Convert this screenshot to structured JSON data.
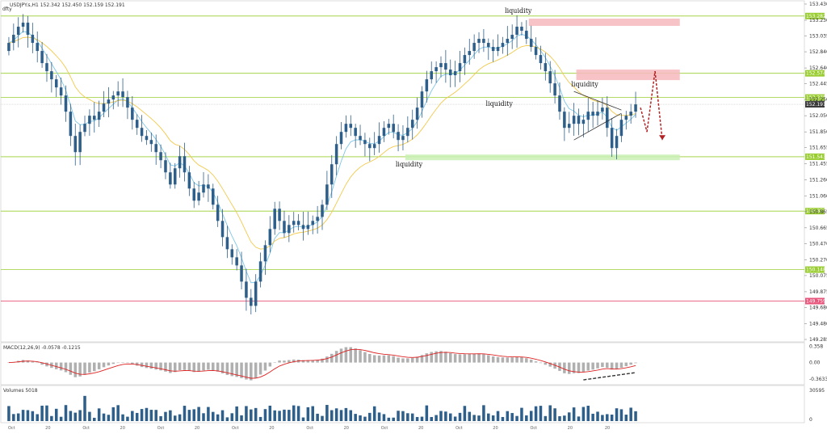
{
  "header": {
    "corner_label": "dfty",
    "instrument_line": "USDJPY.s,H1  152.342 152.450 152.159 152.191"
  },
  "colors": {
    "candle": "#2e5f8a",
    "ma_fast": "#7fc6e6",
    "ma_slow": "#f2c94c",
    "support_line": "#9acd32",
    "red_line": "#e8547a",
    "zone_red": "#f6b8bd",
    "zone_green": "#c9f0b4",
    "macd_hist": "#b0b0b0",
    "macd_signal": "#dd2222",
    "volume": "#2e5f8a",
    "current_price_tag": "#3a3a3a",
    "arrow": "#b22222"
  },
  "chart_data": [
    {
      "type": "candlestick",
      "title": "USDJPY.s,H1",
      "ylim": [
        149.285,
        153.43
      ],
      "yticks": [
        "153.430",
        "153.230",
        "153.035",
        "152.840",
        "152.640",
        "152.445",
        "152.250",
        "152.050",
        "151.850",
        "151.655",
        "151.455",
        "151.260",
        "151.060",
        "150.865",
        "150.665",
        "150.470",
        "150.270",
        "150.075",
        "149.875",
        "149.680",
        "149.480",
        "149.285"
      ],
      "levels": [
        {
          "label": "153.282",
          "value": 153.282,
          "color": "#9acd32"
        },
        {
          "label": "152.574",
          "value": 152.574,
          "color": "#9acd32"
        },
        {
          "label": "152.275",
          "value": 152.275,
          "color": "#9acd32"
        },
        {
          "label": "151.543",
          "value": 151.543,
          "color": "#9acd32"
        },
        {
          "label": "150.871",
          "value": 150.871,
          "color": "#9acd32"
        },
        {
          "label": "150.148",
          "value": 150.148,
          "color": "#9acd32"
        },
        {
          "label": "149.759",
          "value": 149.759,
          "color": "#e8547a"
        }
      ],
      "current_price": {
        "label": "152.191",
        "value": 152.191
      },
      "zones": [
        {
          "color": "red",
          "from_index": 110,
          "to_index": 134,
          "low": 153.16,
          "high": 153.25
        },
        {
          "color": "red",
          "from_index": 120,
          "to_index": 134,
          "low": 152.49,
          "high": 152.62
        },
        {
          "color": "green",
          "from_index": 84,
          "to_index": 134,
          "low": 151.5,
          "high": 151.57
        }
      ],
      "annotations": [
        {
          "text": "liquidity",
          "index": 107,
          "price": 153.32
        },
        {
          "text": "liquidity",
          "index": 103,
          "price": 152.17
        },
        {
          "text": "liquidity",
          "index": 84,
          "price": 151.42
        },
        {
          "text": "liquidity",
          "index": 121,
          "price": 152.41
        }
      ],
      "close": [
        152.95,
        153.05,
        153.15,
        153.2,
        153.05,
        152.95,
        152.85,
        152.7,
        152.6,
        152.5,
        152.4,
        152.3,
        152.1,
        151.8,
        151.6,
        151.85,
        151.95,
        152.05,
        152.0,
        152.1,
        152.2,
        152.25,
        152.3,
        152.35,
        152.28,
        152.15,
        152.0,
        151.9,
        151.8,
        151.75,
        151.7,
        151.6,
        151.5,
        151.35,
        151.2,
        151.4,
        151.55,
        151.35,
        151.15,
        151.0,
        151.1,
        151.2,
        151.15,
        150.95,
        150.75,
        150.55,
        150.4,
        150.3,
        150.2,
        150.0,
        149.8,
        149.7,
        150.0,
        150.25,
        150.45,
        150.65,
        150.9,
        150.75,
        150.6,
        150.7,
        150.75,
        150.7,
        150.65,
        150.7,
        150.75,
        150.8,
        150.95,
        151.2,
        151.45,
        151.7,
        151.85,
        151.95,
        151.9,
        151.8,
        151.75,
        151.7,
        151.65,
        151.7,
        151.8,
        151.9,
        151.95,
        151.85,
        151.75,
        151.8,
        151.9,
        152.0,
        152.15,
        152.35,
        152.5,
        152.6,
        152.65,
        152.7,
        152.62,
        152.55,
        152.6,
        152.7,
        152.8,
        152.85,
        152.95,
        153.0,
        152.95,
        152.9,
        152.85,
        152.9,
        152.95,
        153.0,
        153.05,
        153.15,
        153.1,
        153.0,
        152.9,
        152.8,
        152.7,
        152.6,
        152.45,
        152.3,
        152.1,
        151.9,
        151.95,
        152.05,
        151.95,
        152.0,
        152.1,
        152.05,
        152.1,
        152.15,
        151.9,
        151.65,
        151.8,
        152.0,
        152.05,
        152.1,
        152.19
      ]
    },
    {
      "type": "macd",
      "title": "MACD(12,26,9) -0.0578 -0.1215",
      "yticks": [
        "0.358",
        "0.00",
        "-0.3633"
      ],
      "ylim": [
        -0.45,
        0.4
      ]
    },
    {
      "type": "bar",
      "title": "Volumes 5018",
      "yticks": [
        "30595",
        "0"
      ],
      "ylim": [
        0,
        30595
      ]
    }
  ],
  "x_axis": {
    "labels": [
      "Oct",
      "20",
      "Oct",
      "20",
      "Oct",
      "20",
      "Oct",
      "20",
      "Oct",
      "20",
      "Oct",
      "20",
      "Oct",
      "20",
      "Oct",
      "20",
      "20"
    ]
  }
}
